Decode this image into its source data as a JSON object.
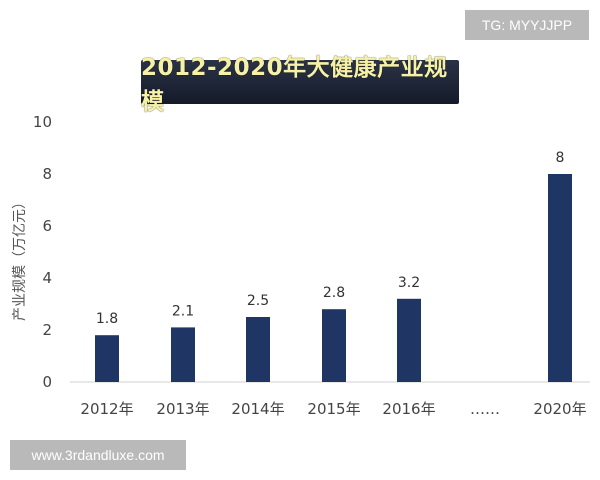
{
  "watermarks": {
    "top_right": "TG: MYYJJPP",
    "bottom_left": "www.3rdandluxe.com"
  },
  "colors": {
    "bar": "#1f3564",
    "title_bg": "#1c2334",
    "title_text": "#f6f1a6"
  },
  "chart_data": {
    "type": "bar",
    "title": "2012-2020年大健康产业规模",
    "ylabel": "产业规模（万亿元）",
    "xlabel": "",
    "ylim": [
      0,
      10
    ],
    "yticks": [
      0,
      2,
      4,
      6,
      8,
      10
    ],
    "categories": [
      "2012年",
      "2013年",
      "2014年",
      "2015年",
      "2016年",
      "……",
      "2020年"
    ],
    "values": [
      1.8,
      2.1,
      2.5,
      2.8,
      3.2,
      null,
      8
    ],
    "data_labels": [
      "1.8",
      "2.1",
      "2.5",
      "2.8",
      "3.2",
      "",
      "8"
    ],
    "grid": false,
    "legend": "none"
  }
}
